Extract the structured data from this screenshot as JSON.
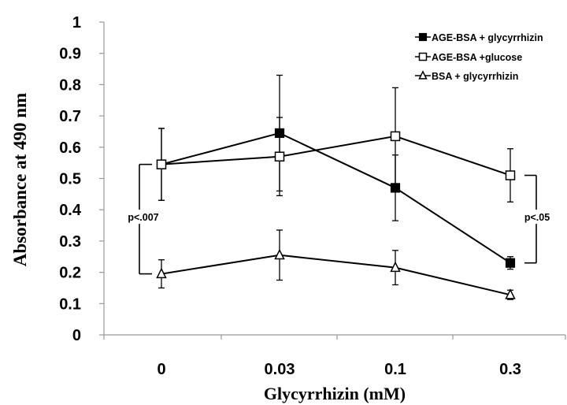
{
  "chart_data": {
    "type": "line",
    "xlabel": "Glycyrrhizin (mM)",
    "ylabel": "Absorbance at 490 nm",
    "categories": [
      "0",
      "0.03",
      "0.1",
      "0.3"
    ],
    "ylim": [
      0,
      1
    ],
    "yticks": [
      "0",
      "0.1",
      "0.2",
      "0.3",
      "0.4",
      "0.5",
      "0.6",
      "0.7",
      "0.8",
      "0.9",
      "1"
    ],
    "grid": false,
    "legend_position": "top-right",
    "series": [
      {
        "name": "AGE-BSA + glycyrrhizin",
        "marker": "filled-square",
        "values": [
          0.545,
          0.645,
          0.47,
          0.23
        ],
        "errors": [
          0.115,
          0.185,
          0.105,
          0.02
        ]
      },
      {
        "name": "AGE-BSA +glucose",
        "marker": "open-square",
        "values": [
          0.545,
          0.57,
          0.635,
          0.51
        ],
        "errors": [
          0.115,
          0.125,
          0.155,
          0.085
        ]
      },
      {
        "name": "BSA + glycyrrhizin",
        "marker": "open-triangle",
        "values": [
          0.195,
          0.255,
          0.215,
          0.128
        ],
        "errors": [
          0.045,
          0.08,
          0.055,
          0.015
        ]
      }
    ],
    "annotations": [
      {
        "text": "p<.007",
        "from_value": 0.545,
        "to_value": 0.195,
        "side": "left",
        "category": "0"
      },
      {
        "text": "p<.05",
        "from_value": 0.51,
        "to_value": 0.23,
        "side": "right",
        "category": "0.3"
      }
    ]
  }
}
